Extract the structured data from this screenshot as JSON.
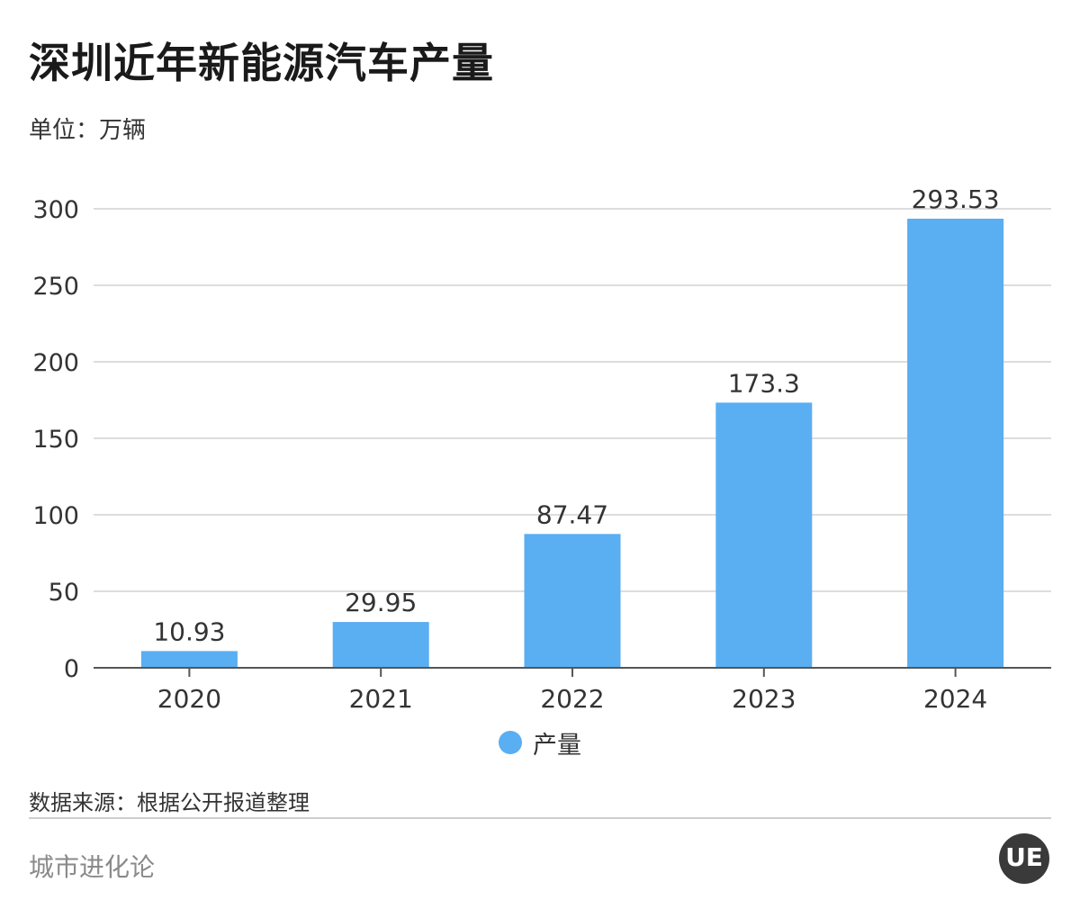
{
  "title": "深圳近年新能源汽车产量",
  "unit": "单位：万辆",
  "source": "数据来源：根据公开报道整理",
  "brand": "城市进化论",
  "logo_text": "UE",
  "colors": {
    "bar": "#5aaef2",
    "grid": "#dddddd",
    "axis": "#555555"
  },
  "chart_data": {
    "type": "bar",
    "title": "",
    "xlabel": "",
    "ylabel": "",
    "categories": [
      "2020",
      "2021",
      "2022",
      "2023",
      "2024"
    ],
    "series": [
      {
        "name": "产量",
        "values": [
          10.93,
          29.95,
          87.47,
          173.3,
          293.53
        ],
        "labels": [
          "10.93",
          "29.95",
          "87.47",
          "173.3",
          "293.53"
        ]
      }
    ],
    "ylim": [
      0,
      300
    ],
    "yticks": [
      0,
      50,
      100,
      150,
      200,
      250,
      300
    ],
    "grid": true,
    "legend": "bottom-center"
  }
}
